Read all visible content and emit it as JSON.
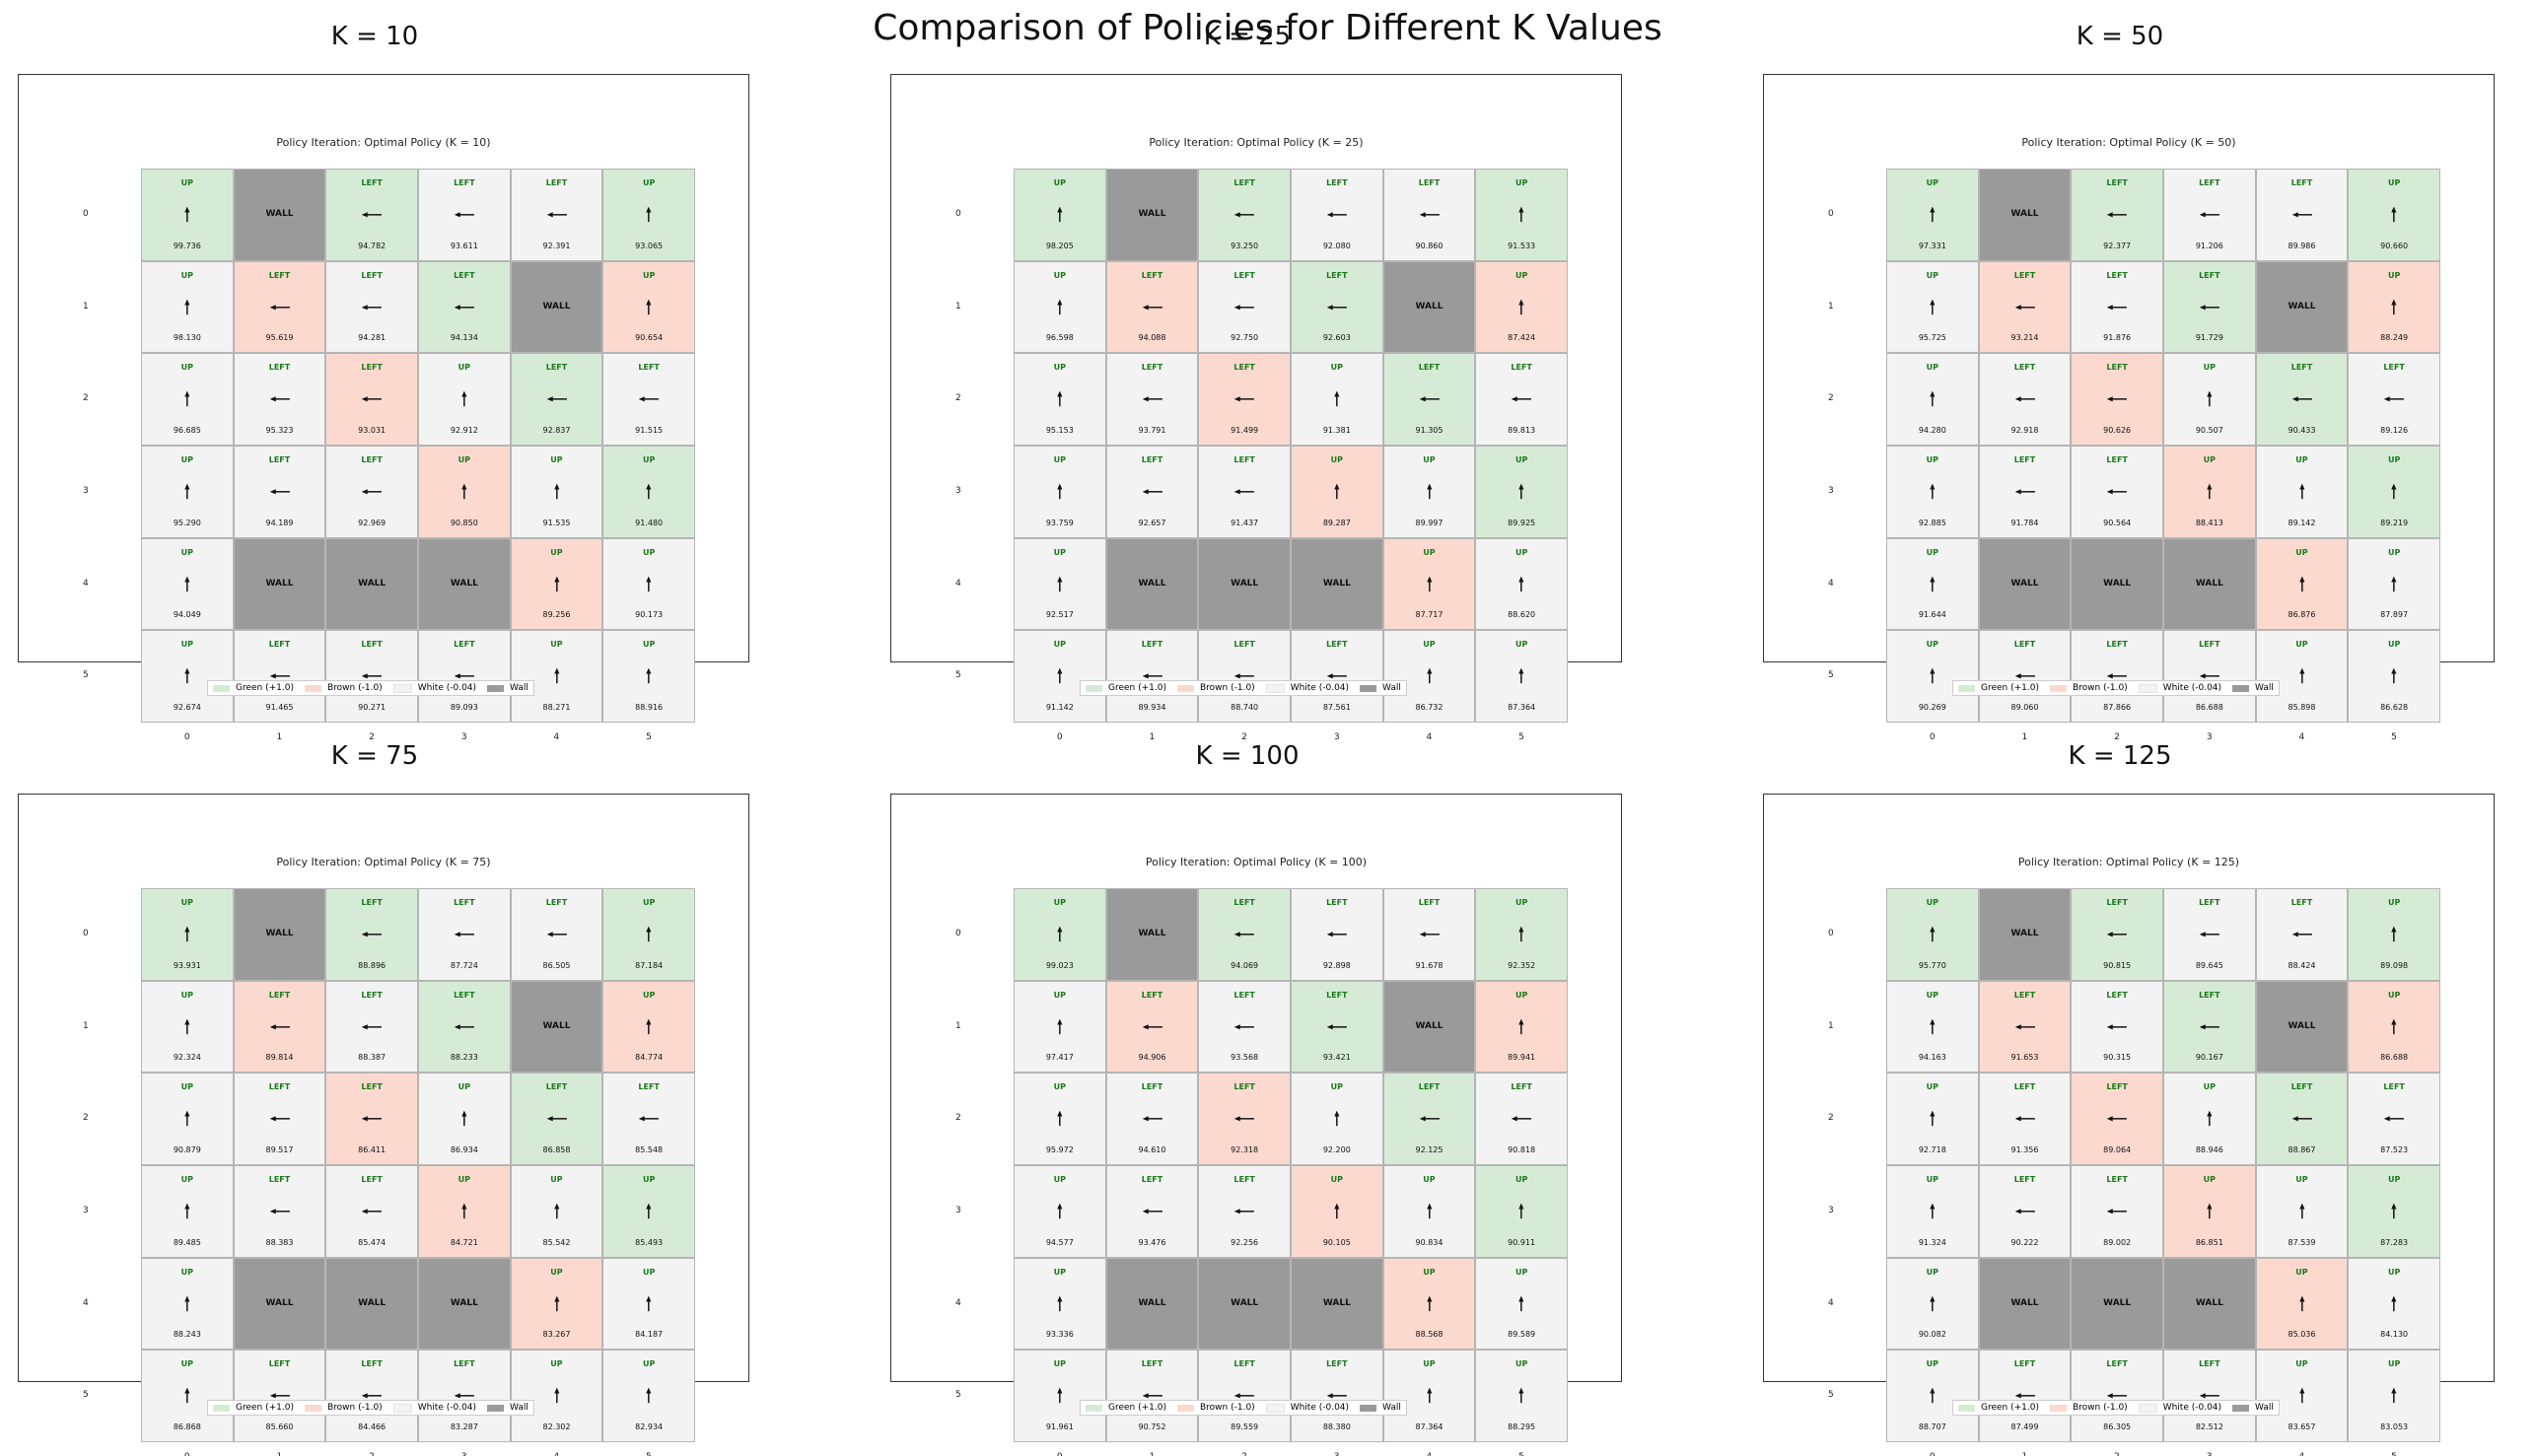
{
  "main_title": "Comparison of Policies for Different K Values",
  "colors": {
    "green": "#d6ebd6",
    "brown": "#fcd9cf",
    "white": "#f3f3f3",
    "wall": "#9a9a9a",
    "arrow": "#111111",
    "action_text": "#1a7a1a"
  },
  "tick_labels": [
    "0",
    "1",
    "2",
    "3",
    "4",
    "5"
  ],
  "legend": [
    {
      "label": "Green (+1.0)",
      "color": "#d6ebd6"
    },
    {
      "label": "Brown (-1.0)",
      "color": "#fcd9cf"
    },
    {
      "label": "White (-0.04)",
      "color": "#f3f3f3"
    },
    {
      "label": "Wall",
      "color": "#9a9a9a"
    }
  ],
  "wall_label": "WALL",
  "cell_types": [
    [
      "G",
      "W",
      "G",
      "E",
      "E",
      "G"
    ],
    [
      "E",
      "B",
      "E",
      "G",
      "W",
      "B"
    ],
    [
      "E",
      "E",
      "B",
      "E",
      "G",
      "E"
    ],
    [
      "E",
      "E",
      "E",
      "B",
      "E",
      "G"
    ],
    [
      "E",
      "W",
      "W",
      "W",
      "B",
      "E"
    ],
    [
      "E",
      "E",
      "E",
      "E",
      "E",
      "E"
    ]
  ],
  "actions": [
    [
      "UP",
      "",
      "LEFT",
      "LEFT",
      "LEFT",
      "UP"
    ],
    [
      "UP",
      "LEFT",
      "LEFT",
      "LEFT",
      "",
      "UP"
    ],
    [
      "UP",
      "LEFT",
      "LEFT",
      "UP",
      "LEFT",
      "LEFT"
    ],
    [
      "UP",
      "LEFT",
      "LEFT",
      "UP",
      "UP",
      "UP"
    ],
    [
      "UP",
      "",
      "",
      "",
      "UP",
      "UP"
    ],
    [
      "UP",
      "LEFT",
      "LEFT",
      "LEFT",
      "UP",
      "UP"
    ]
  ],
  "panels": [
    {
      "title": "K = 10",
      "subtitle": "Policy Iteration: Optimal Policy (K = 10)",
      "values": [
        [
          "99.736",
          "",
          "94.782",
          "93.611",
          "92.391",
          "93.065"
        ],
        [
          "98.130",
          "95.619",
          "94.281",
          "94.134",
          "",
          "90.654"
        ],
        [
          "96.685",
          "95.323",
          "93.031",
          "92.912",
          "92.837",
          "91.515"
        ],
        [
          "95.290",
          "94.189",
          "92.969",
          "90.850",
          "91.535",
          "91.480"
        ],
        [
          "94.049",
          "",
          "",
          "",
          "89.256",
          "90.173"
        ],
        [
          "92.674",
          "91.465",
          "90.271",
          "89.093",
          "88.271",
          "88.916"
        ]
      ]
    },
    {
      "title": "K = 25",
      "subtitle": "Policy Iteration: Optimal Policy (K = 25)",
      "values": [
        [
          "98.205",
          "",
          "93.250",
          "92.080",
          "90.860",
          "91.533"
        ],
        [
          "96.598",
          "94.088",
          "92.750",
          "92.603",
          "",
          "87.424"
        ],
        [
          "95.153",
          "93.791",
          "91.499",
          "91.381",
          "91.305",
          "89.813"
        ],
        [
          "93.759",
          "92.657",
          "91.437",
          "89.287",
          "89.997",
          "89.925"
        ],
        [
          "92.517",
          "",
          "",
          "",
          "87.717",
          "88.620"
        ],
        [
          "91.142",
          "89.934",
          "88.740",
          "87.561",
          "86.732",
          "87.364"
        ]
      ]
    },
    {
      "title": "K = 50",
      "subtitle": "Policy Iteration: Optimal Policy (K = 50)",
      "values": [
        [
          "97.331",
          "",
          "92.377",
          "91.206",
          "89.986",
          "90.660"
        ],
        [
          "95.725",
          "93.214",
          "91.876",
          "91.729",
          "",
          "88.249"
        ],
        [
          "94.280",
          "92.918",
          "90.626",
          "90.507",
          "90.433",
          "89.126"
        ],
        [
          "92.885",
          "91.784",
          "90.564",
          "88.413",
          "89.142",
          "89.219"
        ],
        [
          "91.644",
          "",
          "",
          "",
          "86.876",
          "87.897"
        ],
        [
          "90.269",
          "89.060",
          "87.866",
          "86.688",
          "85.898",
          "86.628"
        ]
      ]
    },
    {
      "title": "K = 75",
      "subtitle": "Policy Iteration: Optimal Policy (K = 75)",
      "values": [
        [
          "93.931",
          "",
          "88.896",
          "87.724",
          "86.505",
          "87.184"
        ],
        [
          "92.324",
          "89.814",
          "88.387",
          "88.233",
          "",
          "84.774"
        ],
        [
          "90.879",
          "89.517",
          "86.411",
          "86.934",
          "86.858",
          "85.548"
        ],
        [
          "89.485",
          "88.383",
          "85.474",
          "84.721",
          "85.542",
          "85.493"
        ],
        [
          "88.243",
          "",
          "",
          "",
          "83.267",
          "84.187"
        ],
        [
          "86.868",
          "85.660",
          "84.466",
          "83.287",
          "82.302",
          "82.934"
        ]
      ]
    },
    {
      "title": "K = 100",
      "subtitle": "Policy Iteration: Optimal Policy (K = 100)",
      "values": [
        [
          "99.023",
          "",
          "94.069",
          "92.898",
          "91.678",
          "92.352"
        ],
        [
          "97.417",
          "94.906",
          "93.568",
          "93.421",
          "",
          "89.941"
        ],
        [
          "95.972",
          "94.610",
          "92.318",
          "92.200",
          "92.125",
          "90.818"
        ],
        [
          "94.577",
          "93.476",
          "92.256",
          "90.105",
          "90.834",
          "90.911"
        ],
        [
          "93.336",
          "",
          "",
          "",
          "88.568",
          "89.589"
        ],
        [
          "91.961",
          "90.752",
          "89.559",
          "88.380",
          "87.364",
          "88.295"
        ]
      ]
    },
    {
      "title": "K = 125",
      "subtitle": "Policy Iteration: Optimal Policy (K = 125)",
      "values": [
        [
          "95.770",
          "",
          "90.815",
          "89.645",
          "88.424",
          "89.098"
        ],
        [
          "94.163",
          "91.653",
          "90.315",
          "90.167",
          "",
          "86.688"
        ],
        [
          "92.718",
          "91.356",
          "89.064",
          "88.946",
          "88.867",
          "87.523"
        ],
        [
          "91.324",
          "90.222",
          "89.002",
          "86.851",
          "87.539",
          "87.283"
        ],
        [
          "90.082",
          "",
          "",
          "",
          "85.036",
          "84.130"
        ],
        [
          "88.707",
          "87.499",
          "86.305",
          "82.512",
          "83.657",
          "83.053"
        ]
      ]
    }
  ]
}
